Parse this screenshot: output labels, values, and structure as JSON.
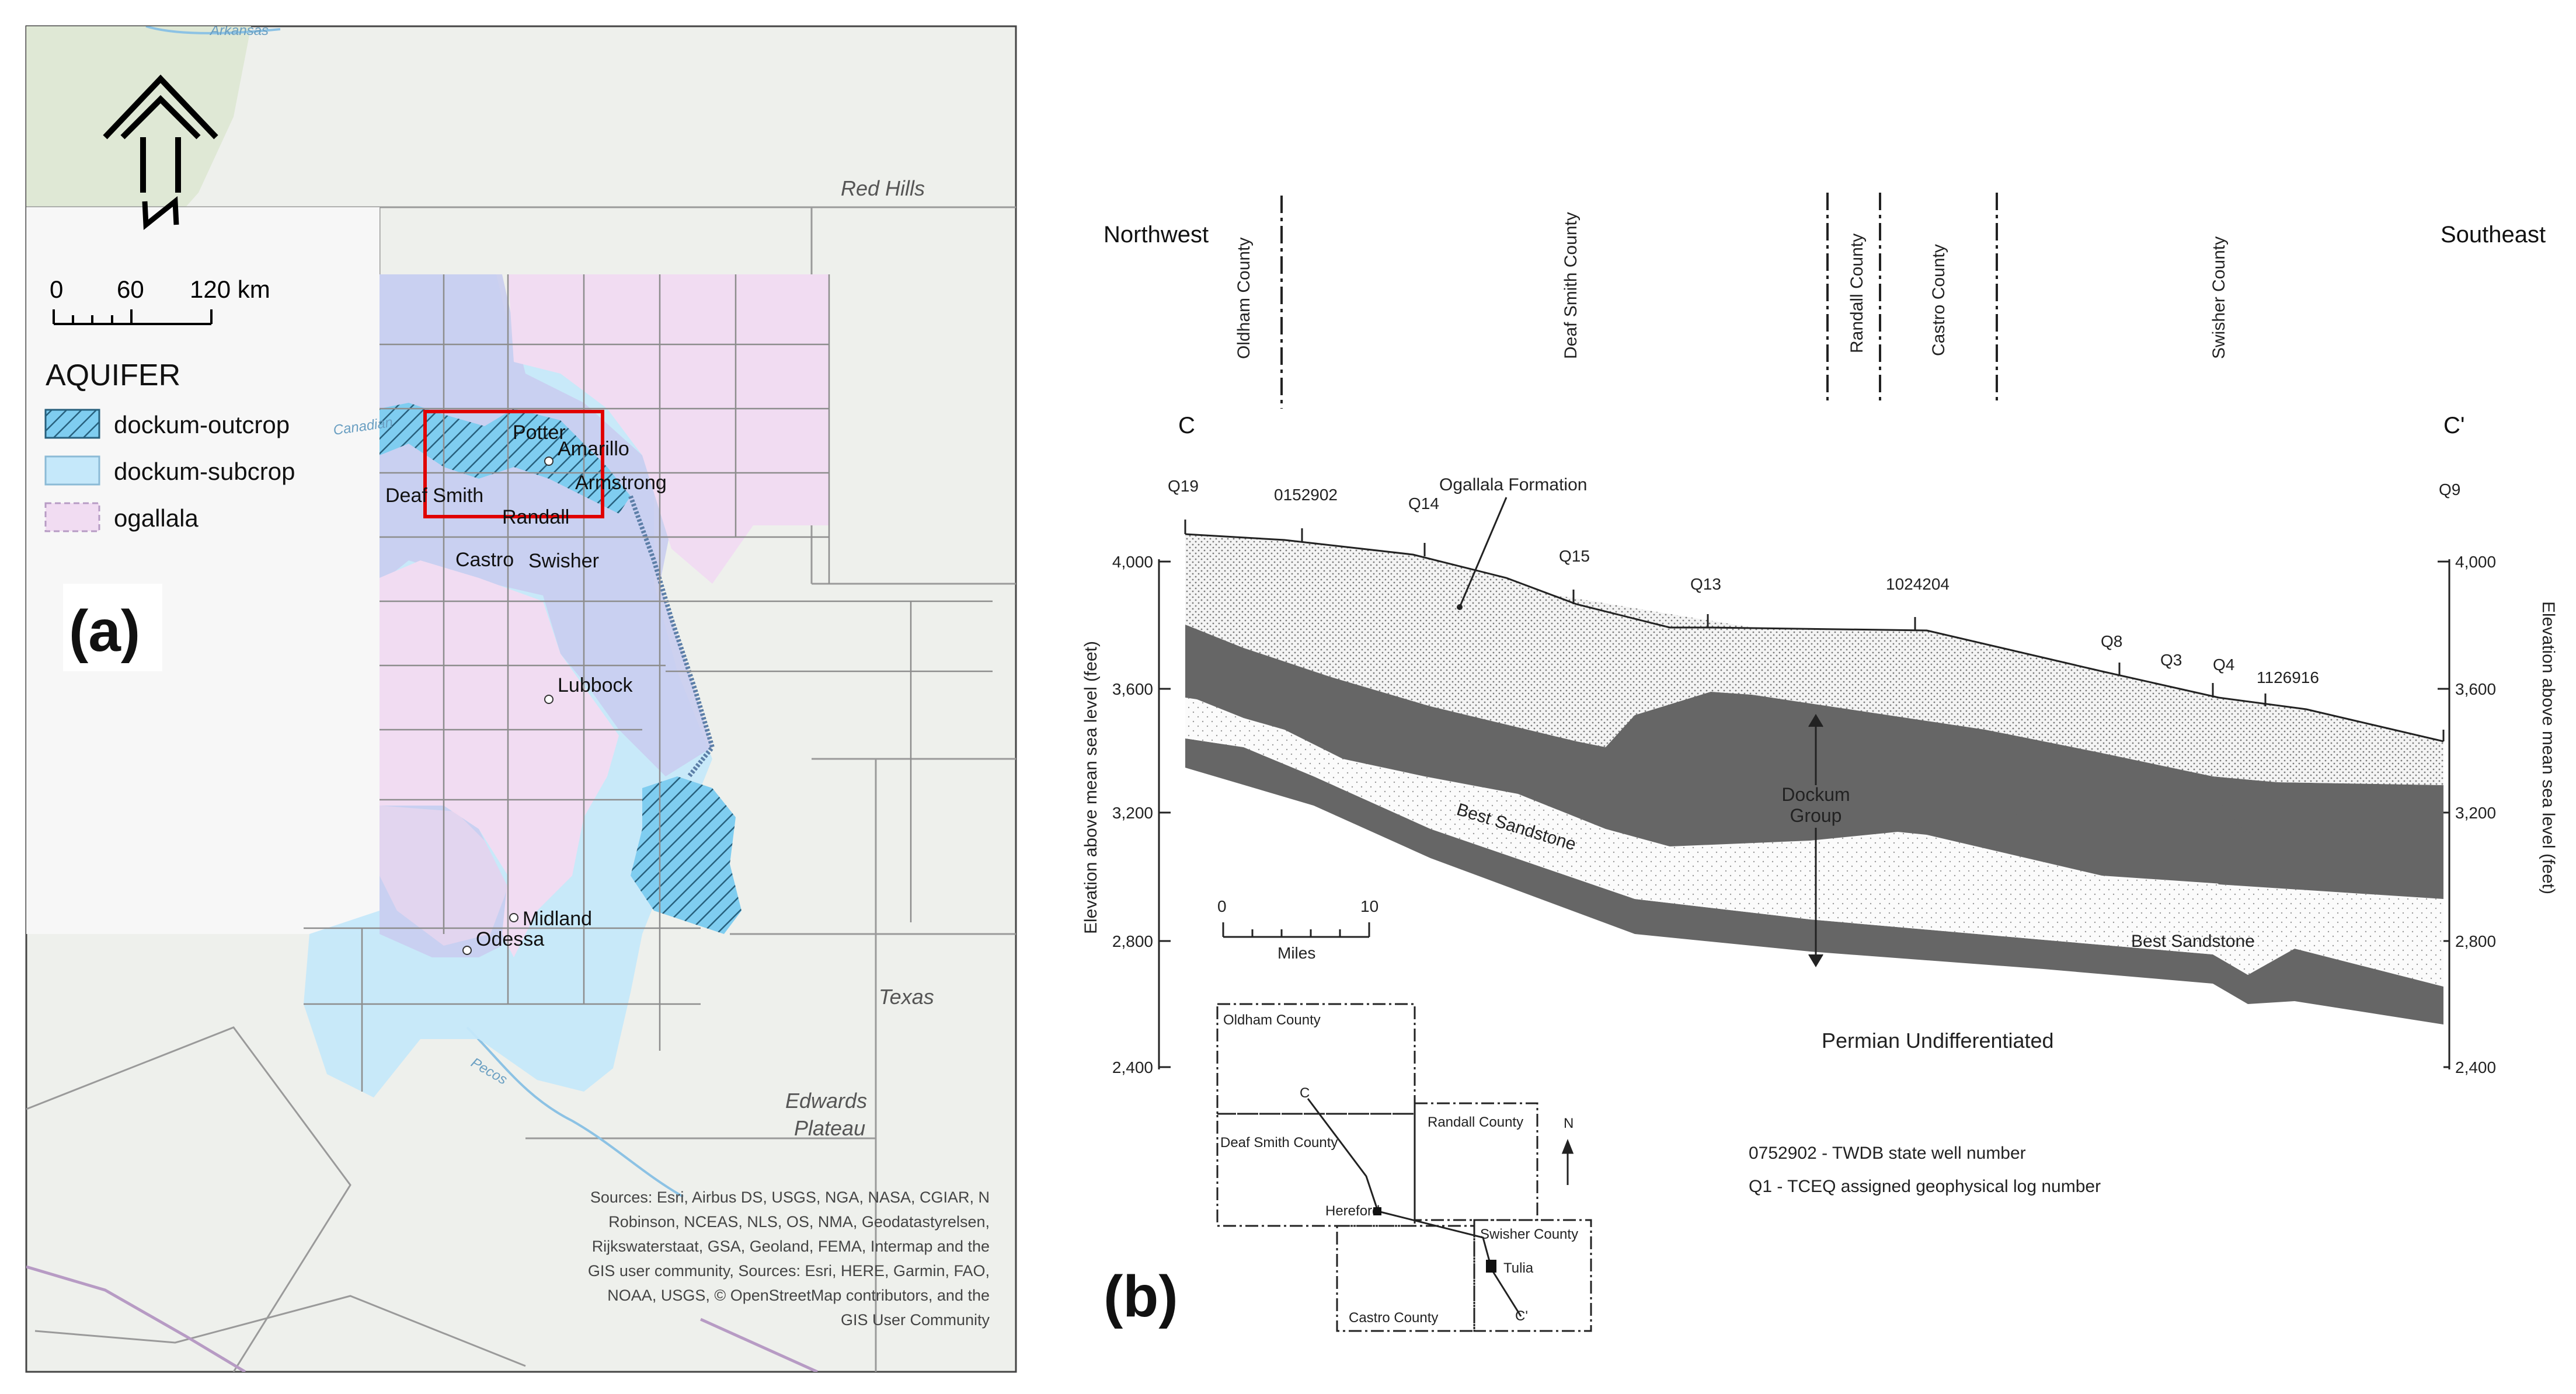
{
  "panel_a": {
    "panel_label": "(a)",
    "scale_bar": {
      "ticks": [
        "0",
        "60",
        "120 km"
      ]
    },
    "legend": {
      "title": "AQUIFER",
      "items": [
        {
          "label": "dockum-outcrop",
          "color": "#66c6ef",
          "pattern": "hatch"
        },
        {
          "label": "dockum-subcrop",
          "color": "#c5e8fa",
          "pattern": "solid"
        },
        {
          "label": "ogallala",
          "color": "#f1dcf2",
          "pattern": "dashed-border"
        }
      ]
    },
    "places": {
      "potter": "Potter",
      "amarillo": "Amarillo",
      "armstrong": "Armstrong",
      "deaf_smith": "Deaf Smith",
      "randall": "Randall",
      "castro": "Castro",
      "swisher": "Swisher",
      "lubbock": "Lubbock",
      "midland": "Midland",
      "odessa": "Odessa",
      "red_hills": "Red Hills",
      "texas": "Texas",
      "edwards": "Edwards",
      "plateau": "Plateau",
      "canadian": "Canadian",
      "arkansas": "Arkansas",
      "pecos": "Pecos"
    },
    "attribution": [
      "Sources: Esri, Airbus DS, USGS, NGA, NASA, CGIAR, N",
      "Robinson, NCEAS, NLS, OS, NMA, Geodatastyrelsen,",
      "Rijkswaterstaat, GSA, Geoland, FEMA, Intermap and the",
      "GIS user community, Sources: Esri, HERE, Garmin, FAO,",
      "NOAA, USGS, © OpenStreetMap contributors, and the",
      "GIS User Community"
    ]
  },
  "panel_b": {
    "panel_label": "(b)",
    "direction_left": "Northwest",
    "direction_right": "Southeast",
    "counties": [
      "Oldham County",
      "Deaf Smith County",
      "Randall County",
      "Castro County",
      "Swisher County"
    ],
    "section_start": "C",
    "section_end": "C'",
    "wells": [
      "Q19",
      "0152902",
      "Q14",
      "Q15",
      "Q13",
      "1024204",
      "Q8",
      "Q3",
      "Q4",
      "1126916",
      "Q9"
    ],
    "y_ticks": [
      "4,000",
      "3,600",
      "3,200",
      "2,800",
      "2,400"
    ],
    "y_axis_label": "Elevation above mean sea level (feet)",
    "units": {
      "ogallala": "Ogallala Formation",
      "dockum_1": "Dockum",
      "dockum_2": "Group",
      "best_sandstone": "Best Sandstone",
      "permian": "Permian Undifferentiated"
    },
    "scale": {
      "zero": "0",
      "ten": "10",
      "unit": "Miles"
    },
    "inset": {
      "oldham": "Oldham County",
      "deaf_smith": "Deaf Smith County",
      "randall": "Randall County",
      "swisher": "Swisher County",
      "castro": "Castro County",
      "hereford": "Hereford",
      "tulia": "Tulia",
      "c": "C",
      "c_prime": "C'",
      "north": "N"
    },
    "notes": [
      "0752902 - TWDB state well number",
      "Q1 - TCEQ assigned geophysical log number"
    ]
  }
}
